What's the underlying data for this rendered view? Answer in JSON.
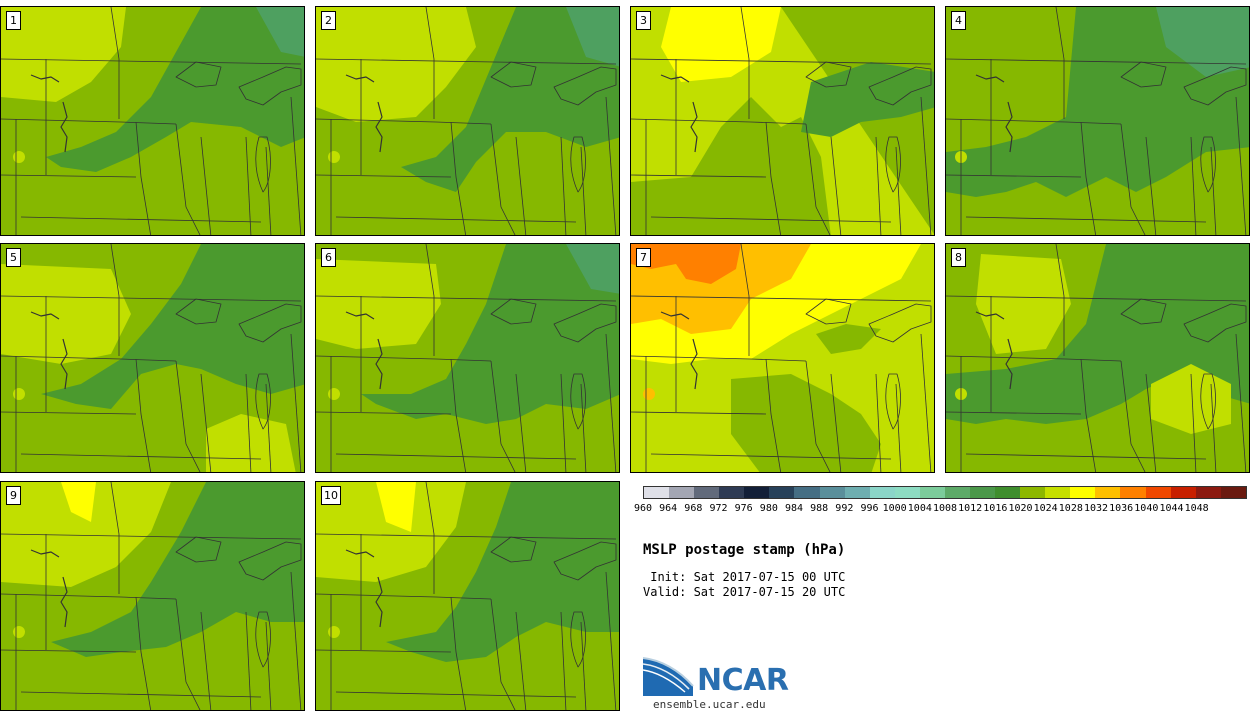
{
  "title": "MSLP postage stamp (hPa)",
  "init": " Init: Sat 2017-07-15 00 UTC",
  "valid": "Valid: Sat 2017-07-15 20 UTC",
  "logo_text": "NCAR",
  "site_url": "ensemble.ucar.edu",
  "members": [
    "1",
    "2",
    "3",
    "4",
    "5",
    "6",
    "7",
    "8",
    "9",
    "10"
  ],
  "colorbar": {
    "levels": [
      "960",
      "964",
      "968",
      "972",
      "976",
      "980",
      "984",
      "988",
      "992",
      "996",
      "1000",
      "1004",
      "1008",
      "1012",
      "1016",
      "1020",
      "1024",
      "1028",
      "1032",
      "1036",
      "1040",
      "1044",
      "1048"
    ],
    "colors": [
      "#dfe0e8",
      "#a3a6b3",
      "#616a7b",
      "#2e3b54",
      "#121f38",
      "#27415a",
      "#456e84",
      "#5a8f9b",
      "#6eaeb0",
      "#8bd5c8",
      "#8ddcc2",
      "#7ccc9b",
      "#5daa68",
      "#4b984a",
      "#3f8e2d",
      "#8db800",
      "#c6e000",
      "#ffff00",
      "#ffc000",
      "#ff8000",
      "#f04800",
      "#c82000",
      "#8c1a10",
      "#6a1a10"
    ]
  },
  "palette": {
    "outline": "#333333",
    "p1016": "#4b9a2e",
    "p1020": "#86b800",
    "p1024": "#c1df00",
    "p1028": "#ffff00",
    "p1032": "#ffbf00",
    "p1036": "#ff8000",
    "p1012": "#4ea060",
    "logo_blue": "#1f6ab2"
  }
}
